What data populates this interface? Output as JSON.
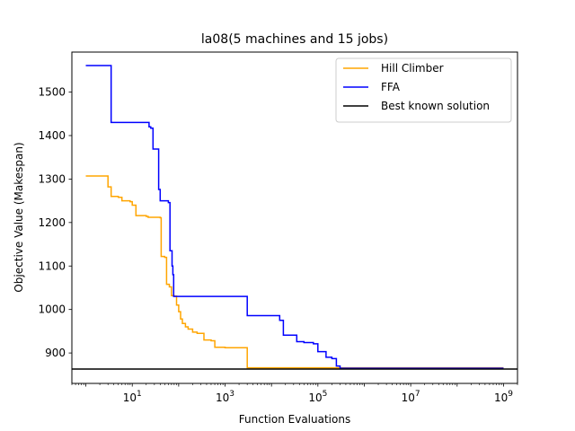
{
  "chart_data": {
    "type": "line",
    "title": "la08(5 machines and 15 jobs)",
    "xlabel": "Function Evaluations",
    "ylabel": "Objective Value (Makespan)",
    "xscale": "log",
    "xlim": [
      0.5,
      2000000000
    ],
    "ylim": [
      830,
      1592
    ],
    "xticks": [
      {
        "value": 10,
        "base": "10",
        "exp": "1"
      },
      {
        "value": 1000,
        "base": "10",
        "exp": "3"
      },
      {
        "value": 100000,
        "base": "10",
        "exp": "5"
      },
      {
        "value": 10000000,
        "base": "10",
        "exp": "7"
      },
      {
        "value": 1000000000,
        "base": "10",
        "exp": "9"
      }
    ],
    "yticks": [
      900,
      1000,
      1100,
      1200,
      1300,
      1400,
      1500
    ],
    "grid": false,
    "legend_position": "top-right",
    "series": [
      {
        "name": "Hill Climber",
        "color": "#ffa500",
        "step": true,
        "points": [
          [
            1,
            1307
          ],
          [
            2.2,
            1307
          ],
          [
            3,
            1282
          ],
          [
            3.5,
            1260
          ],
          [
            5,
            1258
          ],
          [
            6,
            1250
          ],
          [
            9,
            1248
          ],
          [
            10,
            1240
          ],
          [
            12,
            1216
          ],
          [
            20,
            1214
          ],
          [
            22,
            1212
          ],
          [
            40,
            1211
          ],
          [
            42,
            1122
          ],
          [
            50,
            1120
          ],
          [
            55,
            1058
          ],
          [
            63,
            1052
          ],
          [
            70,
            1032
          ],
          [
            80,
            1031
          ],
          [
            90,
            1010
          ],
          [
            100,
            995
          ],
          [
            110,
            978
          ],
          [
            120,
            968
          ],
          [
            140,
            960
          ],
          [
            160,
            955
          ],
          [
            200,
            948
          ],
          [
            250,
            945
          ],
          [
            350,
            930
          ],
          [
            500,
            928
          ],
          [
            600,
            913
          ],
          [
            1000,
            912
          ],
          [
            3000,
            866
          ],
          [
            1000000000,
            866
          ]
        ]
      },
      {
        "name": "FFA",
        "color": "#0000ff",
        "step": true,
        "points": [
          [
            1,
            1561
          ],
          [
            2.2,
            1561
          ],
          [
            3.5,
            1430
          ],
          [
            20,
            1430
          ],
          [
            23,
            1420
          ],
          [
            25,
            1417
          ],
          [
            28,
            1369
          ],
          [
            35,
            1369
          ],
          [
            37,
            1276
          ],
          [
            40,
            1250
          ],
          [
            60,
            1246
          ],
          [
            65,
            1135
          ],
          [
            72,
            1100
          ],
          [
            75,
            1080
          ],
          [
            78,
            1030
          ],
          [
            1000,
            1030
          ],
          [
            3000,
            986
          ],
          [
            10000,
            986
          ],
          [
            15000,
            975
          ],
          [
            18000,
            941
          ],
          [
            30000,
            941
          ],
          [
            35000,
            926
          ],
          [
            50000,
            924
          ],
          [
            80000,
            921
          ],
          [
            100000,
            903
          ],
          [
            150000,
            890
          ],
          [
            200000,
            887
          ],
          [
            250000,
            870
          ],
          [
            300000,
            865
          ],
          [
            1000000000,
            865
          ]
        ]
      },
      {
        "name": "Best known solution",
        "color": "#000000",
        "step": false,
        "points": [
          [
            0.5,
            863
          ],
          [
            2000000000,
            863
          ]
        ]
      }
    ]
  }
}
